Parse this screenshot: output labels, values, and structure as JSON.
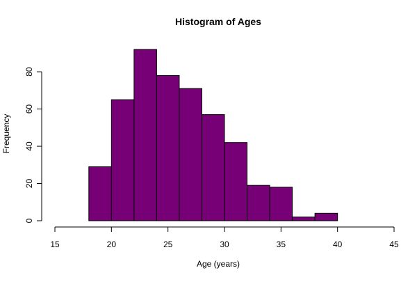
{
  "chart_data": {
    "type": "histogram",
    "title": "Histogram of Ages",
    "xlabel": "Age (years)",
    "ylabel": "Frequency",
    "bar_color": "#770077",
    "xlim": [
      15,
      45
    ],
    "ylim": [
      0,
      92
    ],
    "x_ticks": [
      15,
      20,
      25,
      30,
      35,
      40,
      45
    ],
    "y_ticks": [
      0,
      20,
      40,
      60,
      80
    ],
    "bins": [
      {
        "start": 18,
        "end": 20,
        "count": 29
      },
      {
        "start": 20,
        "end": 22,
        "count": 65
      },
      {
        "start": 22,
        "end": 24,
        "count": 92
      },
      {
        "start": 24,
        "end": 26,
        "count": 78
      },
      {
        "start": 26,
        "end": 28,
        "count": 71
      },
      {
        "start": 28,
        "end": 30,
        "count": 57
      },
      {
        "start": 30,
        "end": 32,
        "count": 42
      },
      {
        "start": 32,
        "end": 34,
        "count": 19
      },
      {
        "start": 34,
        "end": 36,
        "count": 18
      },
      {
        "start": 36,
        "end": 38,
        "count": 2
      },
      {
        "start": 38,
        "end": 40,
        "count": 4
      }
    ],
    "grid": false,
    "legend": "none"
  }
}
